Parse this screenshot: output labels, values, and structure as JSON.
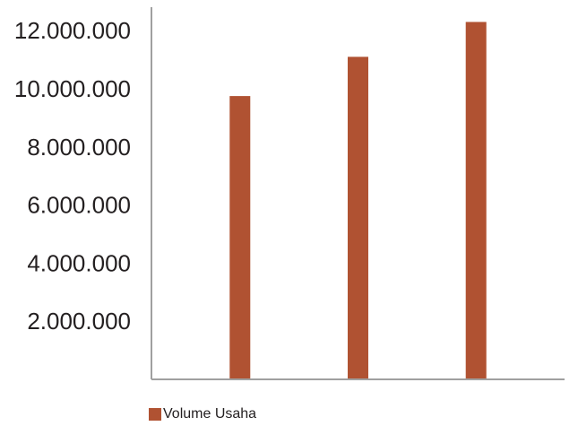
{
  "chart_data": {
    "type": "bar",
    "categories": [
      "",
      "",
      ""
    ],
    "series": [
      {
        "name": "Volume Usaha",
        "color": "#b05232",
        "values": [
          9750000,
          11100000,
          12300000
        ]
      }
    ],
    "y_ticks": [
      2000000,
      4000000,
      6000000,
      8000000,
      10000000,
      12000000
    ],
    "y_tick_labels": [
      "2.000.000",
      "4.000.000",
      "6.000.000",
      "8.000.000",
      "10.000.000",
      "12.000.000"
    ],
    "ylim": [
      0,
      12500000
    ],
    "title": "",
    "xlabel": "",
    "ylabel": "",
    "grid": false,
    "legend_position": "bottom-left"
  }
}
